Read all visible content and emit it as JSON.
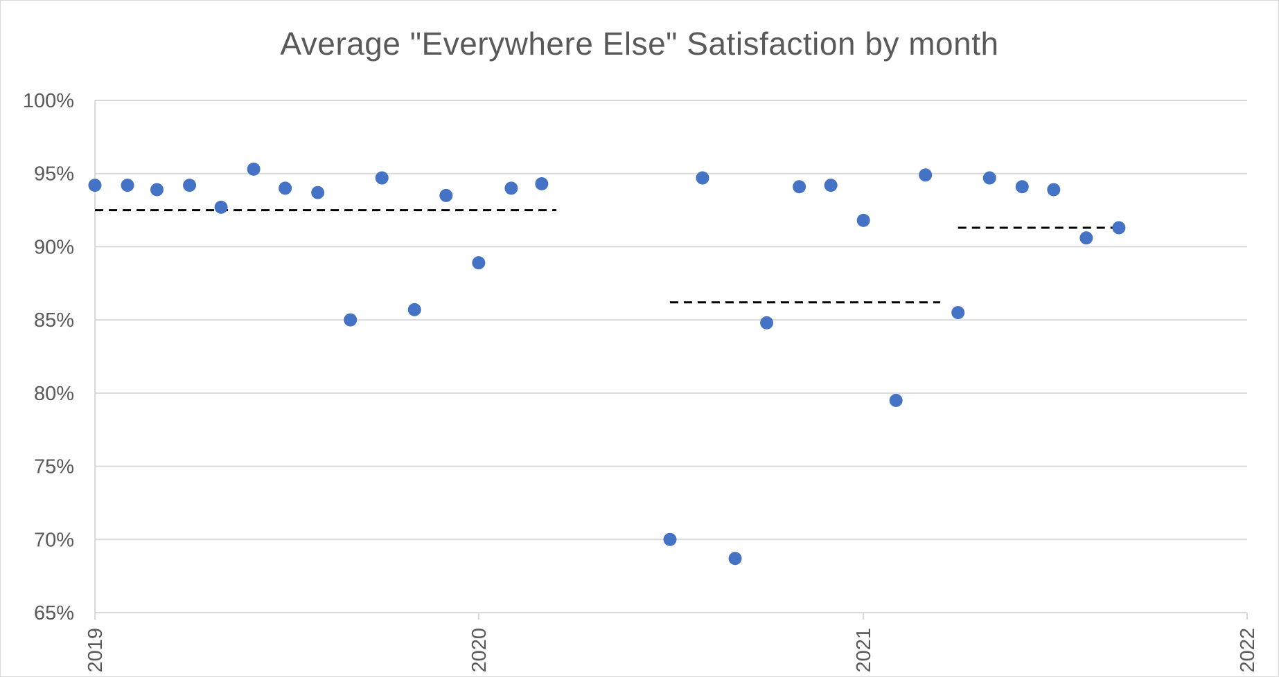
{
  "chart_data": {
    "type": "scatter",
    "title": "Average \"Everywhere Else\" Satisfaction by month",
    "xlabel": "",
    "ylabel": "",
    "x_axis": {
      "type": "date",
      "range": [
        "2019-01-01",
        "2022-01-01"
      ],
      "tick_labels": [
        "2019",
        "2020",
        "2021",
        "2022"
      ],
      "tick_values": [
        "2019-01-01",
        "2020-01-01",
        "2021-01-01",
        "2022-01-01"
      ],
      "label_orientation": "vertical"
    },
    "y_axis": {
      "range": [
        0.65,
        1.0
      ],
      "tick_values": [
        0.65,
        0.7,
        0.75,
        0.8,
        0.85,
        0.9,
        0.95,
        1.0
      ],
      "tick_labels": [
        "65%",
        "70%",
        "75%",
        "80%",
        "85%",
        "90%",
        "95%",
        "100%"
      ]
    },
    "grid": "horizontal",
    "legend": "none",
    "series": [
      {
        "color": "#4472c4",
        "points": [
          {
            "x": "2019-01-01",
            "y": 0.942
          },
          {
            "x": "2019-02-01",
            "y": 0.942
          },
          {
            "x": "2019-03-01",
            "y": 0.939
          },
          {
            "x": "2019-04-01",
            "y": 0.942
          },
          {
            "x": "2019-05-01",
            "y": 0.927
          },
          {
            "x": "2019-06-01",
            "y": 0.953
          },
          {
            "x": "2019-07-01",
            "y": 0.94
          },
          {
            "x": "2019-08-01",
            "y": 0.937
          },
          {
            "x": "2019-09-01",
            "y": 0.85
          },
          {
            "x": "2019-10-01",
            "y": 0.947
          },
          {
            "x": "2019-11-01",
            "y": 0.857
          },
          {
            "x": "2019-12-01",
            "y": 0.935
          },
          {
            "x": "2020-01-01",
            "y": 0.889
          },
          {
            "x": "2020-02-01",
            "y": 0.94
          },
          {
            "x": "2020-03-01",
            "y": 0.943
          },
          {
            "x": "2020-07-01",
            "y": 0.7
          },
          {
            "x": "2020-08-01",
            "y": 0.947
          },
          {
            "x": "2020-09-01",
            "y": 0.687
          },
          {
            "x": "2020-10-01",
            "y": 0.848
          },
          {
            "x": "2020-11-01",
            "y": 0.941
          },
          {
            "x": "2020-12-01",
            "y": 0.942
          },
          {
            "x": "2021-01-01",
            "y": 0.918
          },
          {
            "x": "2021-02-01",
            "y": 0.795
          },
          {
            "x": "2021-03-01",
            "y": 0.949
          },
          {
            "x": "2021-04-01",
            "y": 0.855
          },
          {
            "x": "2021-05-01",
            "y": 0.947
          },
          {
            "x": "2021-06-01",
            "y": 0.941
          },
          {
            "x": "2021-07-01",
            "y": 0.939
          },
          {
            "x": "2021-08-01",
            "y": 0.906
          },
          {
            "x": "2021-09-01",
            "y": 0.913
          }
        ]
      }
    ],
    "reference_lines": [
      {
        "style": "dashed",
        "color": "#000000",
        "x_start": "2019-01-01",
        "x_end": "2020-03-15",
        "y": 0.925
      },
      {
        "style": "dashed",
        "color": "#000000",
        "x_start": "2020-07-01",
        "x_end": "2021-03-15",
        "y": 0.862
      },
      {
        "style": "dashed",
        "color": "#000000",
        "x_start": "2021-04-01",
        "x_end": "2021-09-01",
        "y": 0.913
      }
    ]
  }
}
